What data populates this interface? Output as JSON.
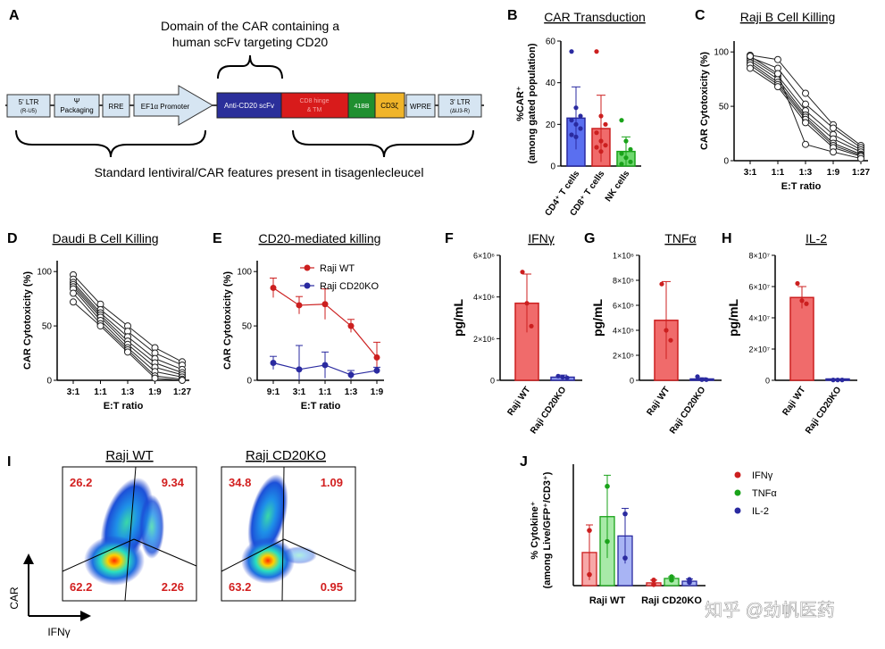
{
  "panel_letters": [
    "A",
    "B",
    "C",
    "D",
    "E",
    "F",
    "G",
    "H",
    "I",
    "J"
  ],
  "colors": {
    "blue_series": "#2a2aa0",
    "red_series": "#cc1f1f",
    "green_series": "#1aa31a",
    "bar_red_fill": "#f06b6b",
    "bar_blue_fill": "#5a6ff0",
    "bar_green_fill": "#6fd86f",
    "construct_box": "#d6e5f2",
    "construct_scfv": "#2b2f9a",
    "construct_cd8": "#d81b1b",
    "construct_41bb": "#1f8f2f",
    "construct_cd3z": "#f0b429"
  },
  "panelA": {
    "top_label_line1": "Domain of the CAR containing a",
    "top_label_line2": "human scFv targeting CD20",
    "bottom_label": "Standard lentiviral/CAR features present in tisagenlecleucel",
    "elements": [
      {
        "id": "ltr5",
        "line1": "5' LTR",
        "line2": "(R-U5)"
      },
      {
        "id": "psi",
        "line1": "Ψ",
        "line2": "Packaging"
      },
      {
        "id": "rre",
        "line1": "RRE",
        "line2": ""
      },
      {
        "id": "ef1a",
        "line1": "EF1α Promoter",
        "line2": ""
      },
      {
        "id": "scfv",
        "line1": "Anti-CD20 scFv",
        "line2": ""
      },
      {
        "id": "cd8",
        "line1": "CD8 hinge",
        "line2": "& TM"
      },
      {
        "id": "bb",
        "line1": "41BB",
        "line2": ""
      },
      {
        "id": "cd3z",
        "line1": "CD3ζ",
        "line2": ""
      },
      {
        "id": "wpre",
        "line1": "WPRE",
        "line2": ""
      },
      {
        "id": "ltr3",
        "line1": "3' LTR",
        "line2": "(ΔU3-R)"
      }
    ]
  },
  "chart_data": [
    {
      "id": "B",
      "type": "bar",
      "title": "CAR Transduction",
      "ylabel_line1": "%CAR⁺",
      "ylabel_line2": "(among gated population)",
      "categories": [
        "CD4⁺ T cells",
        "CD8⁺ T cells",
        "NK cells"
      ],
      "values": [
        23,
        18,
        7
      ],
      "errors": [
        15,
        16,
        7
      ],
      "points": [
        [
          55,
          28,
          24,
          22,
          20,
          18,
          15,
          14
        ],
        [
          55,
          24,
          20,
          16,
          12,
          10,
          9,
          7
        ],
        [
          22,
          12,
          8,
          6,
          4,
          2,
          1
        ]
      ],
      "ylim": [
        0,
        60
      ],
      "yticks": [
        "0",
        "20",
        "40",
        "60"
      ]
    },
    {
      "id": "C",
      "type": "line",
      "title": "Raji B Cell Killing",
      "ylabel": "CAR Cytotoxicity (%)",
      "xlabel": "E:T ratio",
      "categories": [
        "3:1",
        "1:1",
        "1:3",
        "1:9",
        "1:27"
      ],
      "ylim": [
        0,
        110
      ],
      "yticks": [
        "0",
        "50",
        "100"
      ],
      "series": [
        [
          97,
          93,
          62,
          33,
          14
        ],
        [
          95,
          85,
          52,
          30,
          12
        ],
        [
          94,
          78,
          46,
          24,
          10
        ],
        [
          92,
          75,
          42,
          20,
          8
        ],
        [
          90,
          72,
          40,
          16,
          6
        ],
        [
          88,
          70,
          38,
          14,
          5
        ],
        [
          85,
          68,
          35,
          12,
          4
        ],
        [
          96,
          80,
          15,
          8,
          2
        ]
      ]
    },
    {
      "id": "D",
      "type": "line",
      "title": "Daudi B Cell Killing",
      "ylabel": "CAR Cytotoxicity (%)",
      "xlabel": "E:T ratio",
      "categories": [
        "3:1",
        "1:1",
        "1:3",
        "1:9",
        "1:27"
      ],
      "ylim": [
        0,
        110
      ],
      "yticks": [
        "0",
        "50",
        "100"
      ],
      "series": [
        [
          97,
          70,
          50,
          30,
          17
        ],
        [
          93,
          65,
          45,
          25,
          14
        ],
        [
          90,
          62,
          40,
          20,
          10
        ],
        [
          88,
          60,
          36,
          16,
          7
        ],
        [
          86,
          58,
          33,
          12,
          5
        ],
        [
          84,
          55,
          30,
          8,
          3
        ],
        [
          80,
          52,
          28,
          4,
          1
        ],
        [
          72,
          50,
          26,
          2,
          0
        ]
      ]
    },
    {
      "id": "E",
      "type": "line",
      "title": "CD20-mediated killing",
      "ylabel": "CAR Cytotoxicity (%)",
      "xlabel": "E:T ratio",
      "categories": [
        "9:1",
        "3:1",
        "1:1",
        "1:3",
        "1:9"
      ],
      "ylim": [
        0,
        110
      ],
      "yticks": [
        "0",
        "50",
        "100"
      ],
      "legend": [
        "Raji WT",
        "Raji CD20KO"
      ],
      "series": [
        {
          "name": "Raji WT",
          "values": [
            85,
            69,
            70,
            50,
            21
          ],
          "errors": [
            9,
            8,
            14,
            6,
            14
          ]
        },
        {
          "name": "Raji CD20KO",
          "values": [
            16,
            10,
            14,
            5,
            9
          ],
          "errors": [
            6,
            22,
            12,
            4,
            3
          ]
        }
      ]
    },
    {
      "id": "F",
      "type": "bar",
      "title": "IFNγ",
      "ylabel": "pg/mL",
      "categories": [
        "Raji WT",
        "Raji CD20KO"
      ],
      "values": [
        3700000,
        150000
      ],
      "errors": [
        1400000,
        100000
      ],
      "points": [
        [
          5200000,
          3700000,
          2600000
        ],
        [
          200000,
          150000,
          120000
        ]
      ],
      "ylim": [
        0,
        6000000
      ],
      "yticks": [
        "0",
        "2×10⁶",
        "4×10⁶",
        "6×10⁶"
      ]
    },
    {
      "id": "G",
      "type": "bar",
      "title": "TNFα",
      "ylabel": "pg/mL",
      "categories": [
        "Raji WT",
        "Raji CD20KO"
      ],
      "values": [
        480000,
        10000
      ],
      "errors": [
        310000,
        10000
      ],
      "points": [
        [
          770000,
          400000,
          320000
        ],
        [
          30000,
          5000,
          5000
        ]
      ],
      "ylim": [
        0,
        1000000
      ],
      "yticks": [
        "0",
        "2×10⁵",
        "4×10⁵",
        "6×10⁵",
        "8×10⁵",
        "1×10⁶"
      ]
    },
    {
      "id": "H",
      "type": "bar",
      "title": "IL-2",
      "ylabel": "pg/mL",
      "categories": [
        "Raji WT",
        "Raji CD20KO"
      ],
      "values": [
        53000000,
        200000
      ],
      "errors": [
        7000000,
        100000
      ],
      "points": [
        [
          62000000,
          51000000,
          49000000
        ],
        [
          200000,
          200000,
          200000
        ]
      ],
      "ylim": [
        0,
        80000000
      ],
      "yticks": [
        "0",
        "2×10⁷",
        "4×10⁷",
        "6×10⁷",
        "8×10⁷"
      ]
    },
    {
      "id": "J",
      "type": "bar",
      "ylabel_line1": "% Cytokine⁺",
      "ylabel_line2": "(among Live/GFP⁺/CD3⁺)",
      "categories": [
        "Raji WT",
        "Raji CD20KO"
      ],
      "series": [
        {
          "name": "IFNγ",
          "values": [
            6,
            0.5
          ],
          "errors": [
            5,
            0.5
          ],
          "points": [
            [
              10,
              2
            ],
            [
              1,
              0.2
            ]
          ]
        },
        {
          "name": "TNFα",
          "values": [
            12.5,
            1.3
          ],
          "errors": [
            7.5,
            0.3
          ],
          "points": [
            [
              18,
              8
            ],
            [
              1.6,
              1.0
            ]
          ]
        },
        {
          "name": "IL-2",
          "values": [
            9,
            0.8
          ],
          "errors": [
            5,
            0.4
          ],
          "points": [
            [
              13,
              5
            ],
            [
              1.1,
              0.6
            ]
          ]
        }
      ],
      "legend": [
        "IFNγ",
        "TNFα",
        "IL-2"
      ],
      "ylim": [
        0,
        22
      ],
      "yticks": []
    }
  ],
  "panelI": {
    "titles": [
      "Raji WT",
      "Raji CD20KO"
    ],
    "quadrants": [
      {
        "ul": "26.2",
        "ur": "9.34",
        "ll": "62.2",
        "lr": "2.26"
      },
      {
        "ul": "34.8",
        "ur": "1.09",
        "ll": "63.2",
        "lr": "0.95"
      }
    ],
    "axis_y": "CAR",
    "axis_x": "IFNγ"
  },
  "watermark": "知乎 @劲帆医药"
}
